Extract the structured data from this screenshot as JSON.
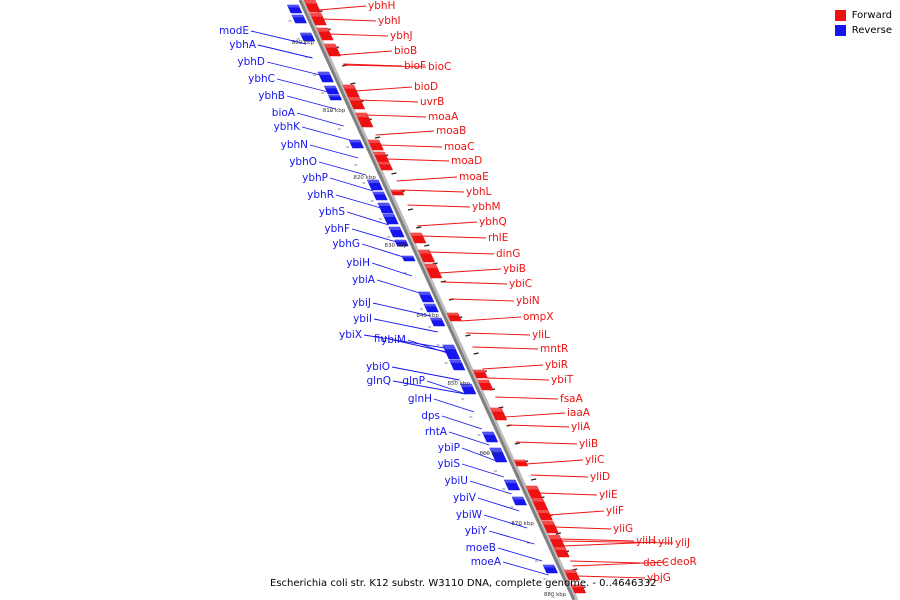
{
  "caption": "Escherichia coli str. K12 substr. W3110 DNA, complete genome. - 0..4646332",
  "colors": {
    "forward": "#ee1111",
    "reverse": "#1515ee",
    "backbone": "#808080"
  },
  "legend": [
    {
      "label": "Forward",
      "color": "#ee1111"
    },
    {
      "label": "Reverse",
      "color": "#1515ee"
    }
  ],
  "kbp_ticks": [
    "800 kbp",
    "810 kbp",
    "820 kbp",
    "830 kbp",
    "840 kbp",
    "850 kbp",
    "860 kbp",
    "870 kbp",
    "880 kbp"
  ],
  "forward_genes": [
    "ybhH",
    "ybhI",
    "ybhJ",
    "bioB",
    "bioF",
    "bioC",
    "bioD",
    "uvrB",
    "moaA",
    "moaB",
    "moaC",
    "moaD",
    "moaE",
    "ybhL",
    "ybhM",
    "ybhQ",
    "rhlE",
    "dinG",
    "ybiB",
    "ybiC",
    "ybiN",
    "ompX",
    "yliL",
    "mntR",
    "ybiR",
    "ybiT",
    "fsaA",
    "iaaA",
    "yliA",
    "yliB",
    "yliC",
    "yliD",
    "yliE",
    "yliF",
    "yliG",
    "yliH",
    "yliI",
    "yliJ",
    "dacC",
    "deoR",
    "ybjG"
  ],
  "reverse_genes": [
    "modE",
    "ybhA",
    "ybhD",
    "ybhC",
    "ybhB",
    "bioA",
    "ybhK",
    "ybhN",
    "ybhO",
    "ybhP",
    "ybhR",
    "ybhS",
    "ybhF",
    "ybhG",
    "ybiH",
    "ybiA",
    "ybiJ",
    "ybiI",
    "ybiX",
    "fiu",
    "ybiM",
    "ybiO",
    "glnQ",
    "glnP",
    "glnH",
    "dps",
    "rhtA",
    "ybiP",
    "ybiS",
    "ybiU",
    "ybiV",
    "ybiW",
    "ybiY",
    "moeB",
    "moeA"
  ]
}
